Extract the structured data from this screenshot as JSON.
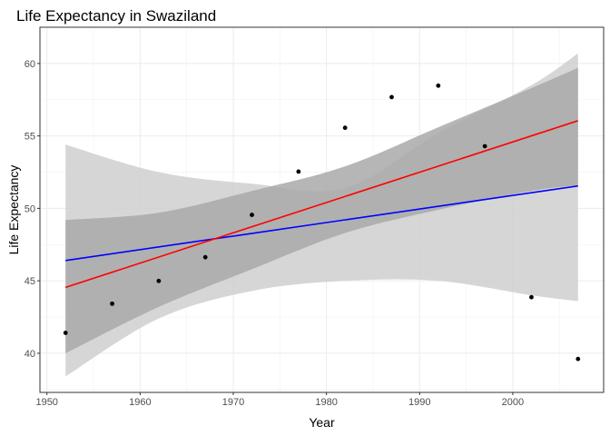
{
  "chart_data": {
    "type": "scatter",
    "title": "Life Expectancy in Swaziland",
    "xlabel": "Year",
    "ylabel": "Life Expectancy",
    "xlim": [
      1949.25,
      2009.75
    ],
    "ylim": [
      37.3,
      62.5
    ],
    "x_ticks": [
      1950,
      1960,
      1970,
      1980,
      1990,
      2000
    ],
    "y_ticks": [
      40,
      45,
      50,
      55,
      60
    ],
    "grid": true,
    "points": {
      "x": [
        1952,
        1957,
        1962,
        1967,
        1972,
        1977,
        1982,
        1987,
        1992,
        1997,
        2002,
        2007
      ],
      "y": [
        41.41,
        43.42,
        44.99,
        46.63,
        49.55,
        52.54,
        55.56,
        57.68,
        58.47,
        54.29,
        43.87,
        39.61
      ],
      "color": "#000000"
    },
    "lines": [
      {
        "color": "#0000ff",
        "x": [
          1952,
          2007
        ],
        "y": [
          46.4,
          51.55
        ],
        "band": {
          "x": [
            1952,
            1962,
            1972,
            1982,
            1992,
            2002,
            2007
          ],
          "lower": [
            38.4,
            42.4,
            44.3,
            45.0,
            45.0,
            44.0,
            43.6
          ],
          "upper": [
            54.4,
            52.5,
            51.7,
            51.4,
            55.2,
            58.5,
            60.7
          ],
          "color": "#cfcfcf"
        }
      },
      {
        "color": "#ff0000",
        "x": [
          1952,
          2007
        ],
        "y": [
          44.55,
          56.05
        ],
        "band": {
          "x": [
            1952,
            1962,
            1972,
            1982,
            1992,
            2002,
            2007
          ],
          "lower": [
            40.0,
            43.2,
            45.8,
            48.3,
            49.9,
            51.2,
            51.6
          ],
          "upper": [
            49.2,
            49.7,
            51.2,
            52.9,
            55.6,
            58.3,
            59.7
          ],
          "color": "#a9a9a9"
        }
      }
    ]
  }
}
